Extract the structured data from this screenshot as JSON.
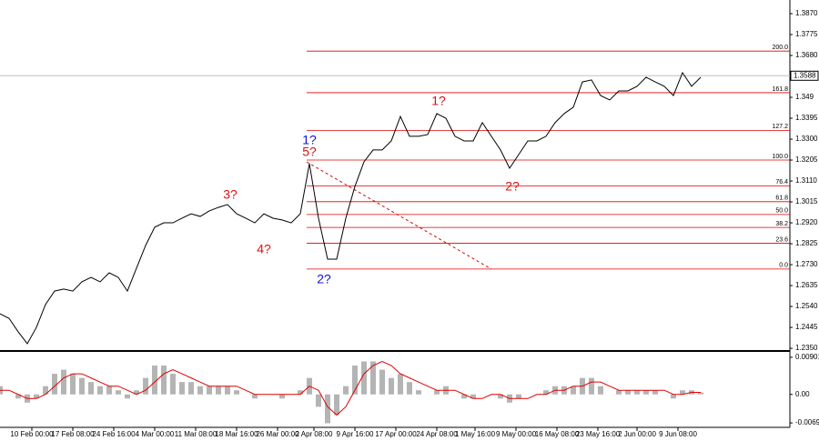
{
  "chart_data": [
    {
      "type": "line",
      "series": [
        {
          "name": "Close",
          "color": "#000000",
          "values": [
            1.2507,
            1.2486,
            1.2425,
            1.2371,
            1.2445,
            1.2549,
            1.261,
            1.2619,
            1.261,
            1.2652,
            1.2672,
            1.2652,
            1.2693,
            1.2672,
            1.261,
            1.2714,
            1.2817,
            1.29,
            1.292,
            1.292,
            1.2941,
            1.2961,
            1.2949,
            1.2974,
            1.299,
            1.3003,
            1.2961,
            1.2941,
            1.292,
            1.2961,
            1.2941,
            1.2933,
            1.292,
            1.2961,
            1.3189,
            1.2941,
            1.2755,
            1.2755,
            1.2941,
            1.3085,
            1.3197,
            1.3251,
            1.3251,
            1.3292,
            1.3403,
            1.3313,
            1.3313,
            1.3321,
            1.3416,
            1.3395,
            1.3313,
            1.3292,
            1.3292,
            1.3375,
            1.3313,
            1.3251,
            1.3168,
            1.323,
            1.3292,
            1.3292,
            1.3313,
            1.3375,
            1.3416,
            1.3445,
            1.356,
            1.3569,
            1.3498,
            1.3478,
            1.3519,
            1.3519,
            1.354,
            1.3581,
            1.356,
            1.354,
            1.3498,
            1.3602,
            1.354,
            1.3581
          ]
        }
      ],
      "xlim": [
        0,
        86.8
      ],
      "xticks": [
        {
          "value": 3.5,
          "label": "10 Feb 00:00"
        },
        {
          "value": 8,
          "label": "17 Feb 08:00"
        },
        {
          "value": 12.5,
          "label": "24 Feb 16:00"
        },
        {
          "value": 17,
          "label": "4 Mar 00:00"
        },
        {
          "value": 21.5,
          "label": "11 Mar 08:00"
        },
        {
          "value": 26,
          "label": "18 Mar 16:00"
        },
        {
          "value": 30.5,
          "label": "26 Mar 00:00"
        },
        {
          "value": 34.5,
          "label": "2 Apr 08:00"
        },
        {
          "value": 39,
          "label": "9 Apr 16:00"
        },
        {
          "value": 43.5,
          "label": "17 Apr 00:00"
        },
        {
          "value": 48,
          "label": "24 Apr 08:00"
        },
        {
          "value": 52.2,
          "label": "1 May 16:00"
        },
        {
          "value": 56.7,
          "label": "9 May 00:00"
        },
        {
          "value": 61.2,
          "label": "16 May 08:00"
        },
        {
          "value": 65.7,
          "label": "23 May 16:00"
        },
        {
          "value": 70,
          "label": "2 Jun 00:00"
        },
        {
          "value": 74.5,
          "label": "9 Jun 08:00"
        }
      ],
      "ylim": [
        1.2342,
        1.3932
      ],
      "yticks": [
        {
          "value": 1.387,
          "label": "1.3870"
        },
        1.3775,
        {
          "value": 1.368,
          "label": "1.3680"
        },
        1.349,
        1.3395,
        {
          "value": 1.33,
          "label": "1.3300"
        },
        1.3205,
        {
          "value": 1.311,
          "label": "1.3110"
        },
        1.3015,
        {
          "value": 1.292,
          "label": "1.2920"
        },
        1.2825,
        {
          "value": 1.273,
          "label": "1.2730"
        },
        1.2635,
        {
          "value": 1.254,
          "label": "1.2540"
        },
        1.2445,
        {
          "value": 1.235,
          "label": "1.2350"
        }
      ],
      "last_price": {
        "value": 1.3588,
        "label": "1.3588"
      },
      "fib_levels": [
        {
          "label": "0.0",
          "value": 1.271
        },
        {
          "label": "23.6",
          "value": 1.2827
        },
        {
          "label": "38.2",
          "value": 1.2899
        },
        {
          "label": "50.0",
          "value": 1.2958
        },
        {
          "label": "61.8",
          "value": 1.3016
        },
        {
          "label": "76.4",
          "value": 1.3088
        },
        {
          "label": "100.0",
          "value": 1.3205
        },
        {
          "label": "127.2",
          "value": 1.334
        },
        {
          "label": "161.8",
          "value": 1.3511
        },
        {
          "label": "200.0",
          "value": 1.37
        }
      ],
      "fib_color": "#e00000",
      "annotations": [
        {
          "text": "1?",
          "color": "#1010e0"
        },
        {
          "text": "5?",
          "color": "#e01010"
        },
        {
          "text": "3?",
          "color": "#e01010"
        },
        {
          "text": "4?",
          "color": "#e01010"
        },
        {
          "text": "2?",
          "color": "#1010e0"
        },
        {
          "text": "1?",
          "color": "#e01010"
        },
        {
          "text": "2?",
          "color": "#e01010"
        }
      ]
    },
    {
      "type": "bar",
      "series": [
        {
          "name": "MACD",
          "color": "#b4b4b4",
          "values": [
            0.002,
            0,
            -0.001,
            -0.002,
            -0.001,
            0.002,
            0.005,
            0.006,
            0.005,
            0.004,
            0.003,
            0.002,
            0.002,
            0.001,
            -0.001,
            0.001,
            0.004,
            0.007,
            0.007,
            0.005,
            0.003,
            0.003,
            0.002,
            0.002,
            0.002,
            0.002,
            0.001,
            0,
            -0.001,
            0,
            0,
            -0.001,
            0,
            0.001,
            0.004,
            -0.003,
            -0.007,
            -0.005,
            0.002,
            0.007,
            0.008,
            0.008,
            0.006,
            0.004,
            0.005,
            0.003,
            0.001,
            0,
            0.001,
            0.002,
            0,
            -0.001,
            -0.001,
            0,
            0,
            -0.001,
            -0.002,
            -0.001,
            0,
            0,
            0.001,
            0.002,
            0.002,
            0.002,
            0.004,
            0.004,
            0.002,
            0,
            0.001,
            0.001,
            0.001,
            0.001,
            0.001,
            0,
            -0.001,
            0.001,
            0.001,
            0.0005
          ]
        },
        {
          "name": "Signal",
          "color": "#e00000",
          "values": [
            0.001,
            0.001,
            0,
            -0.001,
            -0.001,
            0,
            0.002,
            0.004,
            0.005,
            0.005,
            0.004,
            0.003,
            0.002,
            0.002,
            0.001,
            0,
            0.001,
            0.003,
            0.005,
            0.006,
            0.005,
            0.004,
            0.003,
            0.002,
            0.002,
            0.002,
            0.002,
            0.001,
            0,
            0,
            0,
            0,
            0,
            0,
            0.002,
            0.001,
            -0.003,
            -0.005,
            -0.003,
            0.001,
            0.005,
            0.007,
            0.008,
            0.007,
            0.005,
            0.004,
            0.003,
            0.002,
            0.001,
            0.001,
            0.001,
            0,
            -0.001,
            -0.001,
            0,
            0,
            -0.001,
            -0.001,
            -0.001,
            0,
            0,
            0.001,
            0.001,
            0.002,
            0.002,
            0.003,
            0.003,
            0.002,
            0.001,
            0.001,
            0.001,
            0.001,
            0.001,
            0.001,
            0,
            0,
            0.0005,
            0.0005
          ]
        }
      ],
      "xlim": [
        0,
        86.8
      ],
      "ylim": [
        -0.008,
        0.0101
      ],
      "yticks": [
        0.00901,
        {
          "value": 0,
          "label": "0.00"
        },
        -0.00692
      ]
    }
  ]
}
